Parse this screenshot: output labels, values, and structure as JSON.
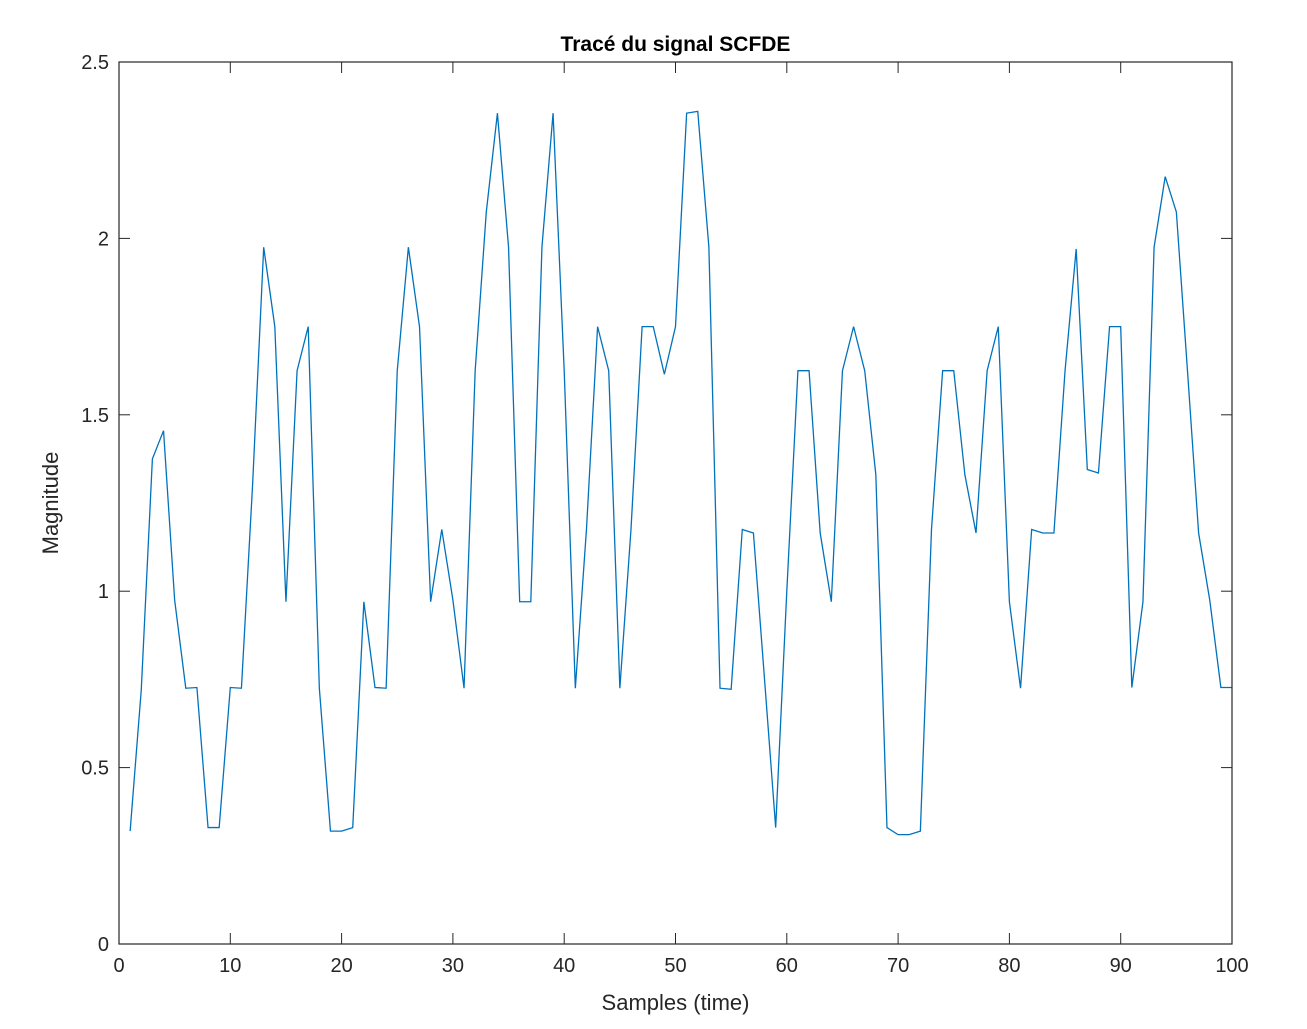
{
  "chart_data": {
    "type": "line",
    "title": "Tracé du signal SCFDE",
    "xlabel": "Samples (time)",
    "ylabel": "Magnitude",
    "xlim": [
      0,
      100
    ],
    "ylim": [
      0,
      2.5
    ],
    "xticks": [
      0,
      10,
      20,
      30,
      40,
      50,
      60,
      70,
      80,
      90,
      100
    ],
    "yticks": [
      0,
      0.5,
      1,
      1.5,
      2,
      2.5
    ],
    "xtick_labels": [
      "0",
      "10",
      "20",
      "30",
      "40",
      "50",
      "60",
      "70",
      "80",
      "90",
      "100"
    ],
    "ytick_labels": [
      "0",
      "0.5",
      "1",
      "1.5",
      "2",
      "2.5"
    ],
    "grid": false,
    "line_color": "#0072BD",
    "axis_color": "#262626",
    "series": [
      {
        "x": [
          1,
          2,
          3,
          4,
          5,
          6,
          7,
          8,
          9,
          10,
          11,
          12,
          13,
          14,
          15,
          16,
          17,
          18,
          19,
          20,
          21,
          22,
          23,
          24,
          25,
          26,
          27,
          28,
          29,
          30,
          31,
          32,
          33,
          34,
          35,
          36,
          37,
          38,
          39,
          40,
          41,
          42,
          43,
          44,
          45,
          46,
          47,
          48,
          49,
          50,
          51,
          52,
          53,
          54,
          55,
          56,
          57,
          58,
          59,
          60,
          61,
          62,
          63,
          64,
          65,
          66,
          67,
          68,
          69,
          70,
          71,
          72,
          73,
          74,
          75,
          76,
          77,
          78,
          79,
          80,
          81,
          82,
          83,
          84,
          85,
          86,
          87,
          88,
          89,
          90,
          91,
          92,
          93,
          94,
          95,
          96,
          97,
          98,
          99,
          100
        ],
        "values": [
          0.32,
          0.72,
          1.375,
          1.455,
          0.975,
          0.725,
          0.727,
          0.33,
          0.33,
          0.727,
          0.725,
          1.3,
          1.975,
          1.75,
          0.97,
          1.625,
          1.75,
          0.725,
          0.32,
          0.32,
          0.33,
          0.97,
          0.727,
          0.725,
          1.625,
          1.975,
          1.75,
          0.97,
          1.175,
          0.975,
          0.725,
          1.625,
          2.075,
          2.355,
          1.975,
          0.97,
          0.97,
          1.975,
          2.355,
          1.625,
          0.725,
          1.175,
          1.75,
          1.625,
          0.725,
          1.175,
          1.75,
          1.75,
          1.615,
          1.75,
          2.355,
          2.36,
          1.975,
          0.725,
          0.722,
          1.175,
          1.165,
          0.75,
          0.33,
          1.0,
          1.625,
          1.625,
          1.165,
          0.97,
          1.625,
          1.75,
          1.625,
          1.33,
          0.33,
          0.31,
          0.31,
          0.32,
          1.175,
          1.625,
          1.625,
          1.33,
          1.165,
          1.625,
          1.75,
          0.97,
          0.725,
          1.175,
          1.165,
          1.165,
          1.625,
          1.97,
          1.345,
          1.335,
          1.75,
          1.75,
          0.727,
          0.97,
          1.975,
          2.175,
          2.075,
          1.625,
          1.165,
          0.975,
          0.727,
          0.727
        ]
      }
    ]
  }
}
